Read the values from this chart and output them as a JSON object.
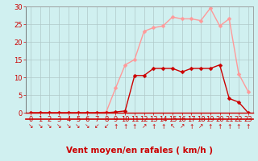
{
  "x": [
    0,
    1,
    2,
    3,
    4,
    5,
    6,
    7,
    8,
    9,
    10,
    11,
    12,
    13,
    14,
    15,
    16,
    17,
    18,
    19,
    20,
    21,
    22,
    23
  ],
  "y_rafales": [
    0,
    0,
    0,
    0,
    0,
    0,
    0,
    0,
    0.2,
    7,
    13.5,
    15,
    23,
    24,
    24.5,
    27,
    26.5,
    26.5,
    26,
    29.5,
    24.5,
    26.5,
    11,
    6
  ],
  "y_moyen": [
    0,
    0,
    0,
    0,
    0,
    0,
    0,
    0,
    0,
    0.2,
    0.5,
    10.5,
    10.5,
    12.5,
    12.5,
    12.5,
    11.5,
    12.5,
    12.5,
    12.5,
    13.5,
    4,
    3,
    0
  ],
  "color_rafales": "#ff9999",
  "color_moyen": "#cc0000",
  "bg_color": "#d0f0f0",
  "grid_color": "#b0c8c8",
  "xlabel": "Vent moyen/en rafales ( km/h )",
  "xlim": [
    -0.5,
    23.5
  ],
  "ylim": [
    0,
    30
  ],
  "yticks": [
    0,
    5,
    10,
    15,
    20,
    25,
    30
  ],
  "xticks": [
    0,
    1,
    2,
    3,
    4,
    5,
    6,
    7,
    8,
    9,
    10,
    11,
    12,
    13,
    14,
    15,
    16,
    17,
    18,
    19,
    20,
    21,
    22,
    23
  ],
  "marker_size": 2.5,
  "line_width": 1.0,
  "xlabel_fontsize": 7.5,
  "tick_fontsize": 6,
  "tick_color": "#cc0000",
  "arrow_chars": [
    "↘",
    "↘",
    "↘",
    "↘",
    "↘",
    "↘",
    "↘",
    "↙",
    "↙",
    "↑",
    "↑",
    "↑",
    "↗",
    "↑",
    "↑",
    "↖",
    "↗",
    "↑",
    "↗",
    "↑",
    "↑",
    "↑",
    "↑",
    "↑"
  ]
}
